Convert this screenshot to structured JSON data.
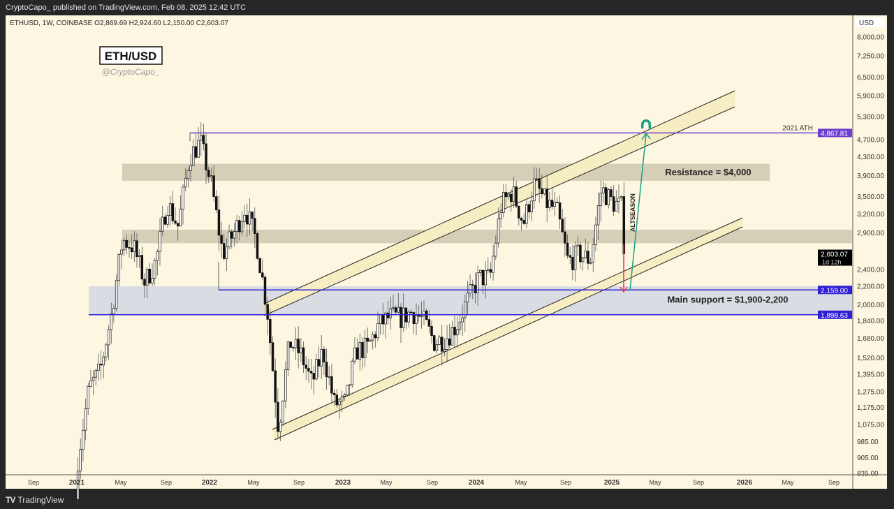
{
  "header": {
    "published": "CryptoCapo_ published on TradingView.com, Feb 08, 2025 12:42 UTC"
  },
  "footer": {
    "brand": "TradingView",
    "logo_icon": "tradingview-logo-icon"
  },
  "chart_data": {
    "type": "candlestick",
    "symbol_line": "ETHUSD, 1W, COINBASE  O2,869.69  H2,924.60  L2,150.00  C2,603.07",
    "title": "ETH/USD",
    "author": "@CryptoCapo_",
    "currency": "USD",
    "scale": "log",
    "ylim": [
      835,
      8000
    ],
    "y_ticks": [
      "8,000.00",
      "7,250.00",
      "6,500.00",
      "5,900.00",
      "5,300.00",
      "4,700.00",
      "4,300.00",
      "3,900.00",
      "3,500.00",
      "3,200.00",
      "2,900.00",
      "2,400.00",
      "2,200.00",
      "2,000.00",
      "1,840.00",
      "1,680.00",
      "1,520.00",
      "1,395.00",
      "1,275.00",
      "1,175.00",
      "1,075.00",
      "985.00",
      "905.00",
      "835.00"
    ],
    "x_ticks": [
      "Sep",
      "2021",
      "May",
      "Sep",
      "2022",
      "May",
      "Sep",
      "2023",
      "May",
      "Sep",
      "2024",
      "May",
      "Sep",
      "2025",
      "May",
      "Sep",
      "2026",
      "May",
      "Sep"
    ],
    "monthly_closes": {
      "months": [
        "2021-01",
        "2021-02",
        "2021-03",
        "2021-04",
        "2021-05",
        "2021-06",
        "2021-07",
        "2021-08",
        "2021-09",
        "2021-10",
        "2021-11",
        "2021-12",
        "2022-01",
        "2022-02",
        "2022-03",
        "2022-04",
        "2022-05",
        "2022-06",
        "2022-07",
        "2022-08",
        "2022-09",
        "2022-10",
        "2022-11",
        "2022-12",
        "2023-01",
        "2023-02",
        "2023-03",
        "2023-04",
        "2023-05",
        "2023-06",
        "2023-07",
        "2023-08",
        "2023-09",
        "2023-10",
        "2023-11",
        "2023-12",
        "2024-01",
        "2024-02",
        "2024-03",
        "2024-04",
        "2024-05",
        "2024-06",
        "2024-07",
        "2024-08",
        "2024-09",
        "2024-10",
        "2024-11",
        "2024-12",
        "2025-01",
        "2025-02"
      ],
      "values": [
        1300,
        1420,
        1900,
        2800,
        2700,
        2250,
        2500,
        3400,
        3000,
        4300,
        4650,
        3700,
        2600,
        2900,
        3300,
        2800,
        1950,
        1050,
        1650,
        1550,
        1330,
        1580,
        1200,
        1200,
        1580,
        1600,
        1800,
        1880,
        1870,
        1930,
        1850,
        1650,
        1680,
        1800,
        2050,
        2300,
        2300,
        3350,
        3600,
        3050,
        3750,
        3400,
        3250,
        2500,
        2600,
        2520,
        3650,
        3400,
        3300,
        2603.07
      ]
    },
    "last_price": {
      "value": "2,603.07",
      "countdown": "1d 12h"
    },
    "levels": [
      {
        "name": "2021 ATH",
        "label": "2021 ATH",
        "value": 4867.81,
        "price_label": "4,867.81",
        "color": "#6c3fd1"
      },
      {
        "name": "support-top",
        "value": 2159.0,
        "price_label": "2,159.00",
        "color": "#2f1fd6"
      },
      {
        "name": "support-bottom",
        "value": 1898.63,
        "price_label": "1,898.63",
        "color": "#2f1fd6"
      }
    ],
    "zones": [
      {
        "name": "resistance",
        "label": "Resistance = $4,000",
        "from": 3800,
        "to": 4150
      },
      {
        "name": "mid",
        "from": 2750,
        "to": 2950
      },
      {
        "name": "main-support",
        "label": "Main support = $1,900-2,200",
        "from": 1900,
        "to": 2200
      }
    ],
    "annotations": {
      "altseason": "ALTSEASON",
      "magnet_icon": "magnet-icon"
    },
    "colors": {
      "bg": "#fdf7e1",
      "zone": "#d6cfb8",
      "support_zone": "#d9dde3",
      "channel_fill": "#f7edc2",
      "green_arrow": "#16a085",
      "red_arrow": "#e8334a"
    }
  }
}
